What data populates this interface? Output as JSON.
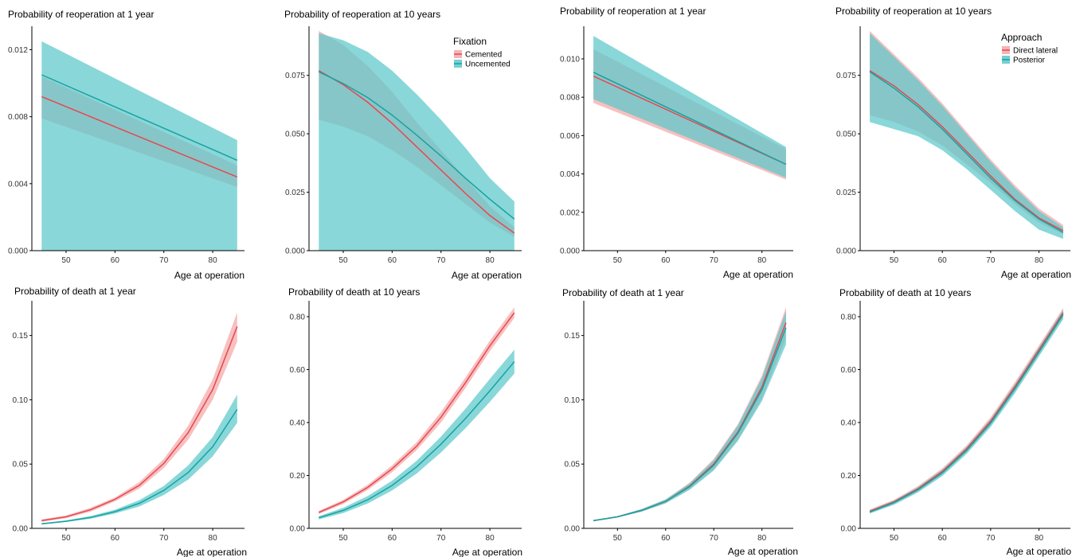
{
  "colors": {
    "cemented": "#e8474f",
    "cemented_band": "#f4a7a7",
    "uncemented": "#15a3a0",
    "uncemented_band": "#5cc7cb",
    "overlap_band": "#8e9d9d",
    "axis": "#000000"
  },
  "chart_data": [
    {
      "id": "fix-reop-1y",
      "type": "line",
      "title": "Probability of reoperation at 1 year",
      "xlabel": "Age at operation",
      "ylabel": "",
      "xlim": [
        43,
        86.5
      ],
      "ylim": [
        0,
        0.0134
      ],
      "xticks": [
        50,
        60,
        70,
        80
      ],
      "yticks": [
        0,
        0.004,
        0.008,
        0.012
      ],
      "ytick_labels": [
        "0.000",
        "0.004",
        "0.008",
        "0.012"
      ],
      "x": [
        45,
        85
      ],
      "series": [
        {
          "name": "Cemented",
          "color_key": "cemented",
          "band_color_key": "cemented_band",
          "values": [
            0.0092,
            0.0044
          ],
          "lower": [
            0.0079,
            0.0038
          ],
          "upper": [
            0.0104,
            0.0051
          ]
        },
        {
          "name": "Uncemented",
          "color_key": "uncemented",
          "band_color_key": "uncemented_band",
          "values": [
            0.0105,
            0.0054
          ],
          "lower": [
            0.0,
            0.0
          ],
          "upper": [
            0.0125,
            0.0066
          ]
        }
      ],
      "grid": false,
      "legend": null
    },
    {
      "id": "fix-reop-10y",
      "type": "line",
      "title": "Probability of reoperation at 10 years",
      "xlabel": "Age at operation",
      "ylabel": "",
      "xlim": [
        43,
        86.5
      ],
      "ylim": [
        0,
        0.096
      ],
      "xticks": [
        50,
        60,
        70,
        80
      ],
      "yticks": [
        0,
        0.025,
        0.05,
        0.075
      ],
      "ytick_labels": [
        "0.000",
        "0.025",
        "0.050",
        "0.075"
      ],
      "x": [
        45,
        50,
        55,
        60,
        65,
        70,
        75,
        80,
        85
      ],
      "series": [
        {
          "name": "Cemented",
          "color_key": "cemented",
          "band_color_key": "cemented_band",
          "values": [
            0.077,
            0.071,
            0.0635,
            0.0545,
            0.0445,
            0.0345,
            0.0245,
            0.015,
            0.0075
          ],
          "lower": [
            0.056,
            0.053,
            0.049,
            0.043,
            0.036,
            0.028,
            0.02,
            0.012,
            0.006
          ],
          "upper": [
            0.094,
            0.088,
            0.079,
            0.068,
            0.055,
            0.043,
            0.031,
            0.019,
            0.01
          ]
        },
        {
          "name": "Uncemented",
          "color_key": "uncemented",
          "band_color_key": "uncemented_band",
          "values": [
            0.0765,
            0.0715,
            0.0655,
            0.058,
            0.0495,
            0.0405,
            0.031,
            0.022,
            0.0135
          ],
          "lower": [
            0.0,
            0.0,
            0.0,
            0.0,
            0.0,
            0.0,
            0.0,
            0.0,
            0.0
          ],
          "upper": [
            0.093,
            0.09,
            0.085,
            0.077,
            0.067,
            0.056,
            0.044,
            0.031,
            0.021
          ]
        }
      ],
      "grid": false,
      "legend": {
        "title": "Fixation",
        "position": "top-right"
      }
    },
    {
      "id": "app-reop-1y",
      "type": "line",
      "title": "Probability of reoperation at 1 year",
      "xlabel": "Age at operation",
      "ylabel": "",
      "xlim": [
        43,
        86.5
      ],
      "ylim": [
        0,
        0.0117
      ],
      "xticks": [
        50,
        60,
        70,
        80
      ],
      "yticks": [
        0,
        0.002,
        0.004,
        0.006,
        0.008,
        0.01
      ],
      "ytick_labels": [
        "0.000",
        "0.002",
        "0.004",
        "0.006",
        "0.008",
        "0.010"
      ],
      "x": [
        45,
        85
      ],
      "series": [
        {
          "name": "Direct lateral",
          "color_key": "cemented",
          "band_color_key": "cemented_band",
          "values": [
            0.0091,
            0.0045
          ],
          "lower": [
            0.0077,
            0.0037
          ],
          "upper": [
            0.0105,
            0.0053
          ]
        },
        {
          "name": "Posterior",
          "color_key": "uncemented",
          "band_color_key": "uncemented_band",
          "values": [
            0.0093,
            0.0045
          ],
          "lower": [
            0.0079,
            0.0038
          ],
          "upper": [
            0.0112,
            0.0054
          ]
        }
      ],
      "grid": false,
      "legend": null
    },
    {
      "id": "app-reop-10y",
      "type": "line",
      "title": "Probability of reoperation at 10 years",
      "xlabel": "Age at operation",
      "ylabel": "",
      "xlim": [
        43,
        86.5
      ],
      "ylim": [
        0,
        0.096
      ],
      "xticks": [
        50,
        60,
        70,
        80
      ],
      "yticks": [
        0,
        0.025,
        0.05,
        0.075
      ],
      "ytick_labels": [
        "0.000",
        "0.025",
        "0.050",
        "0.075"
      ],
      "x": [
        45,
        50,
        55,
        60,
        65,
        70,
        75,
        80,
        85
      ],
      "series": [
        {
          "name": "Direct lateral",
          "color_key": "cemented",
          "band_color_key": "cemented_band",
          "values": [
            0.077,
            0.0705,
            0.0625,
            0.053,
            0.0425,
            0.032,
            0.022,
            0.014,
            0.0085
          ],
          "lower": [
            0.058,
            0.055,
            0.051,
            0.045,
            0.037,
            0.029,
            0.02,
            0.012,
            0.007
          ],
          "upper": [
            0.094,
            0.084,
            0.074,
            0.063,
            0.051,
            0.039,
            0.028,
            0.018,
            0.011
          ]
        },
        {
          "name": "Posterior",
          "color_key": "uncemented",
          "band_color_key": "uncemented_band",
          "values": [
            0.0765,
            0.0695,
            0.0615,
            0.052,
            0.0415,
            0.031,
            0.0215,
            0.0135,
            0.0078
          ],
          "lower": [
            0.055,
            0.052,
            0.049,
            0.043,
            0.035,
            0.026,
            0.017,
            0.009,
            0.005
          ],
          "upper": [
            0.093,
            0.083,
            0.073,
            0.062,
            0.05,
            0.038,
            0.027,
            0.017,
            0.01
          ]
        }
      ],
      "grid": false,
      "legend": {
        "title": "Approach",
        "position": "top-right"
      }
    },
    {
      "id": "fix-death-1y",
      "type": "line",
      "title": "Probability of death at 1 year",
      "xlabel": "Age at operation",
      "ylabel": "",
      "xlim": [
        43,
        86.5
      ],
      "ylim": [
        0,
        0.177
      ],
      "xticks": [
        50,
        60,
        70,
        80
      ],
      "yticks": [
        0,
        0.05,
        0.1,
        0.15
      ],
      "ytick_labels": [
        "0.00",
        "0.05",
        "0.10",
        "0.15"
      ],
      "x": [
        45,
        50,
        55,
        60,
        65,
        70,
        75,
        80,
        85
      ],
      "series": [
        {
          "name": "Cemented",
          "color_key": "cemented",
          "band_color_key": "cemented_band",
          "values": [
            0.006,
            0.009,
            0.0145,
            0.0225,
            0.0335,
            0.0505,
            0.0745,
            0.108,
            0.157
          ],
          "lower": [
            0.005,
            0.008,
            0.013,
            0.021,
            0.031,
            0.047,
            0.069,
            0.1,
            0.145
          ],
          "upper": [
            0.007,
            0.01,
            0.016,
            0.024,
            0.036,
            0.054,
            0.08,
            0.116,
            0.168
          ]
        },
        {
          "name": "Uncemented",
          "color_key": "uncemented",
          "band_color_key": "uncemented_band",
          "values": [
            0.0035,
            0.0055,
            0.0085,
            0.013,
            0.0195,
            0.0295,
            0.0435,
            0.0635,
            0.0925
          ],
          "lower": [
            0.003,
            0.005,
            0.0075,
            0.0115,
            0.017,
            0.026,
            0.038,
            0.056,
            0.082
          ],
          "upper": [
            0.004,
            0.0062,
            0.0095,
            0.0145,
            0.022,
            0.033,
            0.049,
            0.071,
            0.104
          ]
        }
      ],
      "grid": false,
      "legend": null
    },
    {
      "id": "fix-death-10y",
      "type": "line",
      "title": "Probability of death at 10 years",
      "xlabel": "Age at operation",
      "ylabel": "",
      "xlim": [
        43,
        86.5
      ],
      "ylim": [
        0,
        0.86
      ],
      "xticks": [
        50,
        60,
        70,
        80
      ],
      "yticks": [
        0,
        0.2,
        0.4,
        0.6,
        0.8
      ],
      "ytick_labels": [
        "0.00",
        "0.20",
        "0.40",
        "0.60",
        "0.80"
      ],
      "x": [
        45,
        50,
        55,
        60,
        65,
        70,
        75,
        80,
        85
      ],
      "series": [
        {
          "name": "Cemented",
          "color_key": "cemented",
          "band_color_key": "cemented_band",
          "values": [
            0.06,
            0.1,
            0.155,
            0.225,
            0.31,
            0.42,
            0.55,
            0.69,
            0.815
          ],
          "lower": [
            0.054,
            0.092,
            0.145,
            0.212,
            0.295,
            0.4,
            0.53,
            0.67,
            0.795
          ],
          "upper": [
            0.066,
            0.108,
            0.165,
            0.238,
            0.325,
            0.44,
            0.57,
            0.71,
            0.835
          ]
        },
        {
          "name": "Uncemented",
          "color_key": "uncemented",
          "band_color_key": "uncemented_band",
          "values": [
            0.04,
            0.068,
            0.108,
            0.162,
            0.232,
            0.318,
            0.415,
            0.52,
            0.63
          ],
          "lower": [
            0.034,
            0.058,
            0.094,
            0.143,
            0.207,
            0.287,
            0.378,
            0.478,
            0.585
          ],
          "upper": [
            0.046,
            0.078,
            0.122,
            0.18,
            0.255,
            0.347,
            0.452,
            0.565,
            0.675
          ]
        }
      ],
      "grid": false,
      "legend": null
    },
    {
      "id": "app-death-1y",
      "type": "line",
      "title": "Probability of death at 1 year",
      "xlabel": "Age at operation",
      "ylabel": "",
      "xlim": [
        43,
        86.5
      ],
      "ylim": [
        0,
        0.177
      ],
      "xticks": [
        50,
        60,
        70,
        80
      ],
      "yticks": [
        0,
        0.05,
        0.1,
        0.15
      ],
      "ytick_labels": [
        "0.00",
        "0.05",
        "0.10",
        "0.15"
      ],
      "x": [
        45,
        50,
        55,
        60,
        65,
        70,
        75,
        80,
        85
      ],
      "series": [
        {
          "name": "Direct lateral",
          "color_key": "cemented",
          "band_color_key": "cemented_band",
          "values": [
            0.006,
            0.009,
            0.014,
            0.021,
            0.033,
            0.05,
            0.075,
            0.11,
            0.16
          ],
          "lower": [
            0.0055,
            0.0085,
            0.013,
            0.0195,
            0.0305,
            0.046,
            0.069,
            0.101,
            0.148
          ],
          "upper": [
            0.0065,
            0.0095,
            0.015,
            0.0225,
            0.0355,
            0.054,
            0.081,
            0.119,
            0.172
          ]
        },
        {
          "name": "Posterior",
          "color_key": "uncemented",
          "band_color_key": "uncemented_band",
          "values": [
            0.006,
            0.009,
            0.014,
            0.021,
            0.0325,
            0.049,
            0.074,
            0.108,
            0.156
          ],
          "lower": [
            0.0055,
            0.0085,
            0.013,
            0.0195,
            0.03,
            0.045,
            0.068,
            0.099,
            0.143
          ],
          "upper": [
            0.0065,
            0.0095,
            0.015,
            0.0225,
            0.035,
            0.053,
            0.08,
            0.117,
            0.169
          ]
        }
      ],
      "grid": false,
      "legend": null
    },
    {
      "id": "app-death-10y",
      "type": "line",
      "title": "Probability of death at 10 years",
      "xlabel": "Age at operatio",
      "ylabel": "",
      "xlim": [
        43,
        86.5
      ],
      "ylim": [
        0,
        0.86
      ],
      "xticks": [
        50,
        60,
        70,
        80
      ],
      "yticks": [
        0,
        0.2,
        0.4,
        0.6,
        0.8
      ],
      "ytick_labels": [
        "0.00",
        "0.20",
        "0.40",
        "0.60",
        "0.80"
      ],
      "x": [
        45,
        50,
        55,
        60,
        65,
        70,
        75,
        80,
        85
      ],
      "series": [
        {
          "name": "Direct lateral",
          "color_key": "cemented",
          "band_color_key": "cemented_band",
          "values": [
            0.065,
            0.1,
            0.15,
            0.215,
            0.3,
            0.405,
            0.535,
            0.675,
            0.815
          ],
          "lower": [
            0.058,
            0.092,
            0.14,
            0.203,
            0.287,
            0.39,
            0.518,
            0.658,
            0.798
          ],
          "upper": [
            0.072,
            0.108,
            0.16,
            0.227,
            0.313,
            0.42,
            0.552,
            0.692,
            0.832
          ]
        },
        {
          "name": "Posterior",
          "color_key": "uncemented",
          "band_color_key": "uncemented_band",
          "values": [
            0.062,
            0.097,
            0.146,
            0.21,
            0.294,
            0.398,
            0.527,
            0.667,
            0.808
          ],
          "lower": [
            0.056,
            0.089,
            0.136,
            0.198,
            0.281,
            0.383,
            0.51,
            0.65,
            0.79
          ],
          "upper": [
            0.068,
            0.105,
            0.156,
            0.222,
            0.307,
            0.413,
            0.544,
            0.684,
            0.826
          ]
        }
      ],
      "grid": false,
      "legend": null
    }
  ],
  "legends": {
    "fixation": {
      "title": "Fixation",
      "items": [
        {
          "label": "Cemented",
          "color_key": "cemented",
          "band_color_key": "cemented_band"
        },
        {
          "label": "Uncemented",
          "color_key": "uncemented",
          "band_color_key": "uncemented_band"
        }
      ]
    },
    "approach": {
      "title": "Approach",
      "items": [
        {
          "label": "Direct lateral",
          "color_key": "cemented",
          "band_color_key": "cemented_band"
        },
        {
          "label": "Posterior",
          "color_key": "uncemented",
          "band_color_key": "uncemented_band"
        }
      ]
    }
  }
}
